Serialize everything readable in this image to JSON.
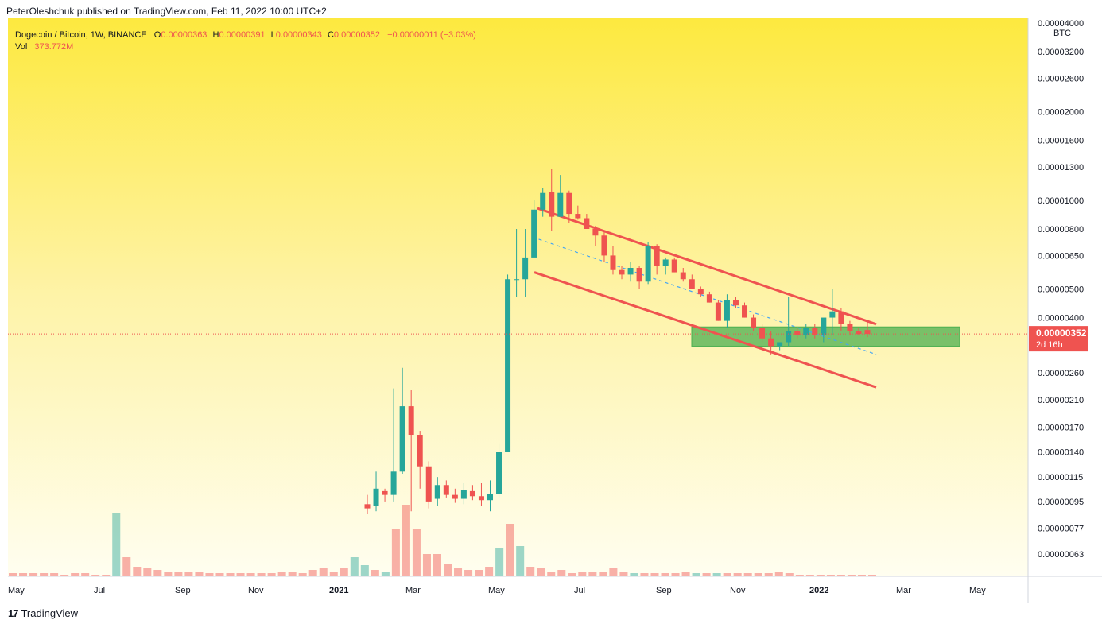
{
  "publisher": "PeterOleshchuk published on TradingView.com, Feb 11, 2022 10:00 UTC+2",
  "legend": {
    "symbol": "Dogecoin / Bitcoin, 1W, BINANCE",
    "o_key": "O",
    "o": "0.00000363",
    "h_key": "H",
    "h": "0.00000391",
    "l_key": "L",
    "l": "0.00000343",
    "c_key": "C",
    "c": "0.00000352",
    "change": "−0.00000011 (−3.03%)",
    "vol_key": "Vol",
    "vol": "373.772M"
  },
  "footer": {
    "logo": "17",
    "brand": "TradingView"
  },
  "chart_data": {
    "type": "candlestick",
    "scale": "log",
    "currency_label": "BTC",
    "y_ticks": [
      "0.00004000",
      "0.00003200",
      "0.00002600",
      "0.00002000",
      "0.00001600",
      "0.00001300",
      "0.00001000",
      "0.00000800",
      "0.00000650",
      "0.00000500",
      "0.00000400",
      "0.00000260",
      "0.00000210",
      "0.00000170",
      "0.00000140",
      "0.00000115",
      "0.00000095",
      "0.00000077",
      "0.00000063"
    ],
    "x_ticks": [
      "May",
      "Jul",
      "Sep",
      "Nov",
      "2021",
      "Mar",
      "May",
      "Jul",
      "Sep",
      "Nov",
      "2022",
      "Mar",
      "May"
    ],
    "last_price": {
      "value": "0.00000352",
      "countdown": "2d 16h",
      "color": "#ef5350"
    },
    "colors": {
      "up": "#26a69a",
      "down": "#ef5350",
      "channel": "#ef5350",
      "midline": "#42a5f5",
      "zone": "#4caf50"
    },
    "candles_ohlc_e8": [
      [
        93,
        100,
        86,
        90
      ],
      [
        92,
        120,
        88,
        105
      ],
      [
        103,
        105,
        95,
        100
      ],
      [
        100,
        230,
        95,
        120
      ],
      [
        120,
        270,
        118,
        200
      ],
      [
        200,
        228,
        88,
        160
      ],
      [
        160,
        165,
        105,
        125
      ],
      [
        125,
        130,
        90,
        95
      ],
      [
        97,
        115,
        92,
        108
      ],
      [
        108,
        112,
        98,
        100
      ],
      [
        100,
        105,
        94,
        97
      ],
      [
        97,
        110,
        93,
        104
      ],
      [
        103,
        108,
        96,
        99
      ],
      [
        99,
        110,
        92,
        96
      ],
      [
        96,
        112,
        88,
        101
      ],
      [
        101,
        150,
        98,
        140
      ],
      [
        140,
        560,
        280,
        540
      ],
      [
        540,
        800,
        470,
        540
      ],
      [
        540,
        800,
        470,
        640
      ],
      [
        640,
        1000,
        650,
        930
      ],
      [
        930,
        1100,
        880,
        1060
      ],
      [
        1070,
        1280,
        790,
        880
      ],
      [
        880,
        1220,
        900,
        1060
      ],
      [
        1060,
        1080,
        840,
        900
      ],
      [
        900,
        960,
        860,
        870
      ],
      [
        870,
        900,
        840,
        800
      ],
      [
        800,
        820,
        700,
        760
      ],
      [
        760,
        780,
        620,
        650
      ],
      [
        650,
        700,
        560,
        580
      ],
      [
        580,
        600,
        540,
        560
      ],
      [
        560,
        620,
        530,
        590
      ],
      [
        590,
        600,
        500,
        530
      ],
      [
        530,
        720,
        520,
        700
      ],
      [
        700,
        710,
        560,
        600
      ],
      [
        600,
        640,
        560,
        630
      ],
      [
        630,
        640,
        570,
        570
      ],
      [
        570,
        590,
        530,
        540
      ],
      [
        540,
        560,
        500,
        500
      ],
      [
        500,
        510,
        470,
        480
      ],
      [
        480,
        490,
        450,
        450
      ],
      [
        450,
        460,
        390,
        390
      ],
      [
        390,
        480,
        370,
        460
      ],
      [
        460,
        470,
        430,
        440
      ],
      [
        440,
        450,
        400,
        400
      ],
      [
        400,
        410,
        360,
        370
      ],
      [
        370,
        380,
        330,
        340
      ],
      [
        340,
        360,
        300,
        320
      ],
      [
        320,
        330,
        310,
        330
      ],
      [
        330,
        470,
        320,
        360
      ],
      [
        360,
        370,
        340,
        350
      ],
      [
        350,
        380,
        340,
        370
      ],
      [
        370,
        380,
        340,
        350
      ],
      [
        350,
        390,
        330,
        400
      ],
      [
        400,
        500,
        350,
        420
      ],
      [
        420,
        430,
        360,
        380
      ],
      [
        380,
        390,
        350,
        360
      ],
      [
        360,
        370,
        350,
        352
      ],
      [
        363,
        391,
        343,
        352
      ]
    ]
  }
}
